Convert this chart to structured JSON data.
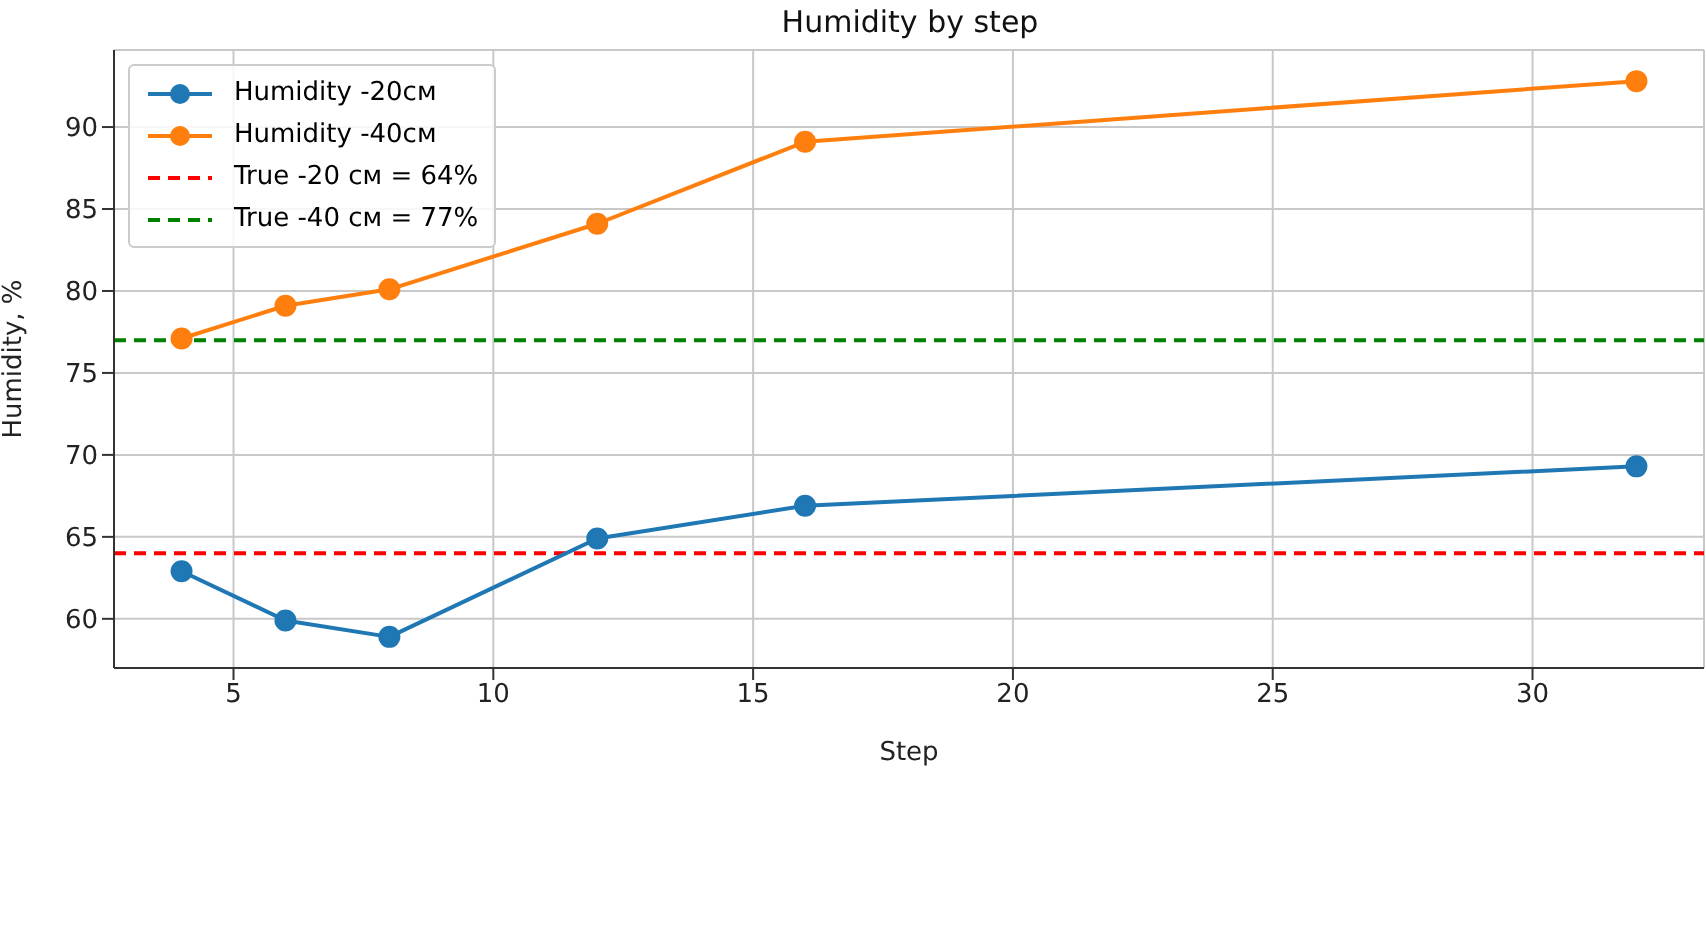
{
  "chart_data": {
    "type": "line",
    "title": "Humidity by step",
    "xlabel": "Step",
    "ylabel": "Humidity, %",
    "x": [
      4,
      6,
      8,
      12,
      16,
      32
    ],
    "series": [
      {
        "name": "Humidity -20см",
        "color": "#1f77b4",
        "values": [
          62.9,
          59.9,
          58.9,
          64.9,
          66.9,
          69.3
        ]
      },
      {
        "name": "Humidity -40см",
        "color": "#ff7f0e",
        "values": [
          77.1,
          79.1,
          80.1,
          84.1,
          89.1,
          92.8
        ]
      }
    ],
    "ref_lines": [
      {
        "axis": "y",
        "value": 64,
        "label": "True -20 см = 64%",
        "color": "#ff0000",
        "line_style": "dashed"
      },
      {
        "axis": "y",
        "value": 77,
        "label": "True -40 см = 77%",
        "color": "#008000",
        "line_style": "dashed"
      }
    ],
    "xlim": [
      2.7,
      33.3
    ],
    "xticks": [
      5,
      10,
      15,
      20,
      25,
      30
    ],
    "ylim": [
      57,
      94.7
    ],
    "yticks": [
      60,
      65,
      70,
      75,
      80,
      85,
      90
    ],
    "grid": true,
    "legend": "top left",
    "marker": "circle",
    "line_style": "solid"
  }
}
